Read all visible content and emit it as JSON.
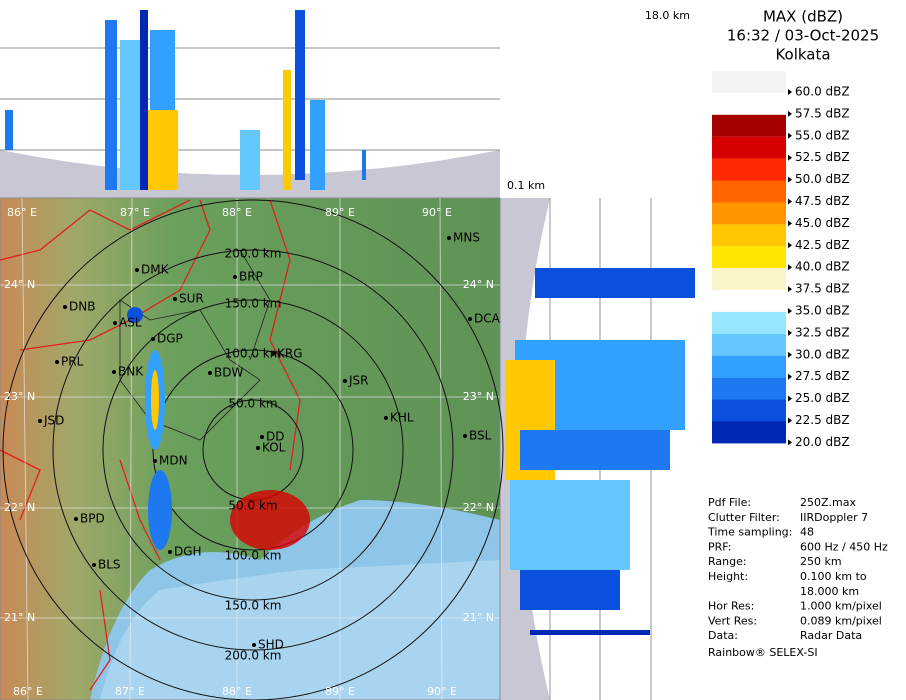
{
  "header": {
    "title": [
      "MAX (dBZ)",
      "16:32 / 03-Oct-2025",
      "Kolkata"
    ]
  },
  "heights": {
    "top": "18.0 km",
    "bottom": "0.1 km"
  },
  "legend": [
    {
      "label": "60.0 dBZ",
      "color": "#f4f4f4"
    },
    {
      "label": "57.5 dBZ",
      "color": "#ffffff"
    },
    {
      "label": "55.0 dBZ",
      "color": "#a50000"
    },
    {
      "label": "52.5 dBZ",
      "color": "#d70000"
    },
    {
      "label": "50.0 dBZ",
      "color": "#ff2800"
    },
    {
      "label": "47.5 dBZ",
      "color": "#ff6400"
    },
    {
      "label": "45.0 dBZ",
      "color": "#ff9600"
    },
    {
      "label": "42.5 dBZ",
      "color": "#ffc800"
    },
    {
      "label": "40.0 dBZ",
      "color": "#ffe600"
    },
    {
      "label": "37.5 dBZ",
      "color": "#faf5c8"
    },
    {
      "label": "35.0 dBZ",
      "color": "#ffffff"
    },
    {
      "label": "32.5 dBZ",
      "color": "#96e6ff"
    },
    {
      "label": "30.0 dBZ",
      "color": "#64c8ff"
    },
    {
      "label": "27.5 dBZ",
      "color": "#32a0ff"
    },
    {
      "label": "25.0 dBZ",
      "color": "#1e78f0"
    },
    {
      "label": "22.5 dBZ",
      "color": "#0a50dc"
    },
    {
      "label": "20.0 dBZ",
      "color": "#0028b4"
    }
  ],
  "longitudes": [
    "86° E",
    "87° E",
    "88° E",
    "89° E",
    "90° E"
  ],
  "latitudes": [
    "24° N",
    "23° N",
    "22° N",
    "21° N"
  ],
  "rings": [
    "50.0 km",
    "100.0 km",
    "150.0 km",
    "200.0 km"
  ],
  "cities": [
    "DMK",
    "BRP",
    "MNS",
    "DNB",
    "SUR",
    "ASL",
    "DCA",
    "DGP",
    "KRG",
    "PRL",
    "BNK",
    "BDW",
    "JSR",
    "KHL",
    "JSD",
    "BSL",
    "DD",
    "KOL",
    "MDN",
    "BPD",
    "DGH",
    "BLS",
    "SHD"
  ],
  "info": [
    [
      "Pdf File:",
      "250Z.max"
    ],
    [
      "Clutter Filter:",
      "IIRDoppler 7"
    ],
    [
      "Time sampling:",
      "48"
    ],
    [
      "PRF:",
      "600 Hz / 450 Hz"
    ],
    [
      "Range:",
      "250 km"
    ],
    [
      "Height:",
      "0.100 km to"
    ],
    [
      null,
      "18.000 km"
    ],
    [
      "Hor Res:",
      "1.000 km/pixel"
    ],
    [
      "Vert Res:",
      "0.089 km/pixel"
    ],
    [
      "Data:",
      "Radar Data"
    ]
  ],
  "footer": "Rainbow® SELEX-SI"
}
